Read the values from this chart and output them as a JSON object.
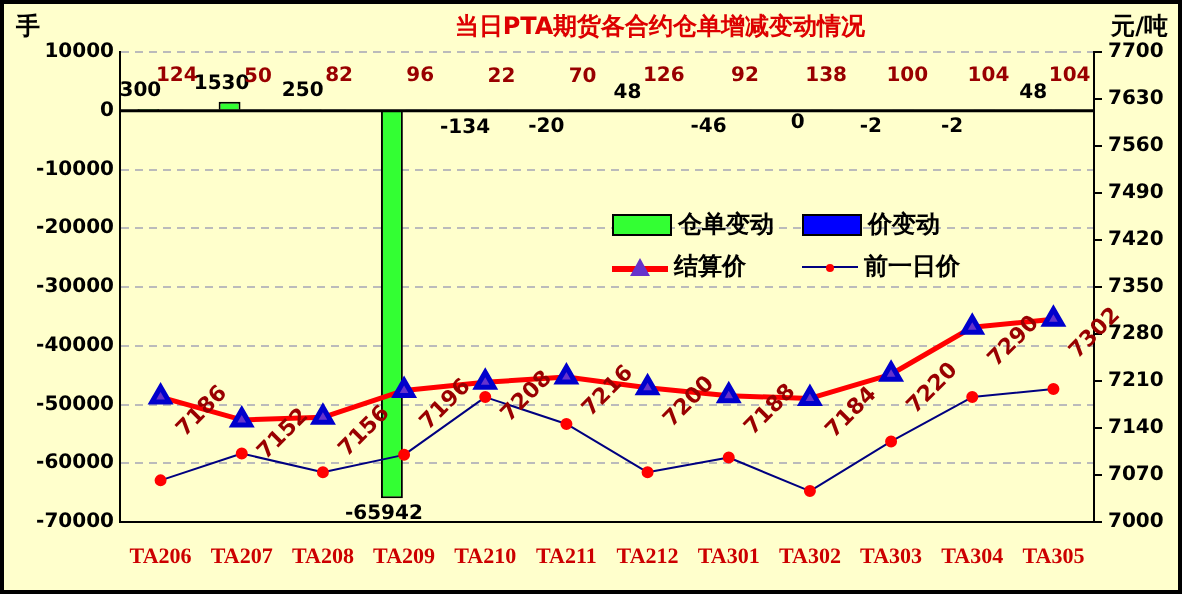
{
  "chart_data": {
    "type": "bar",
    "title": "当日PTA期货各合约仓单增减变动情况",
    "ylabel": "手",
    "y2label": "元/吨",
    "categories": [
      "TA206",
      "TA207",
      "TA208",
      "TA209",
      "TA210",
      "TA211",
      "TA212",
      "TA301",
      "TA302",
      "TA303",
      "TA304",
      "TA305"
    ],
    "series": [
      {
        "name": "仓单变动",
        "color": "#33ff33",
        "data_labels": true,
        "values": [
          300,
          1530,
          250,
          -65942,
          -134,
          -20,
          48,
          -46,
          0,
          -2,
          -2,
          48
        ]
      },
      {
        "name": "价变动",
        "color": "#0000ff",
        "data_labels": true,
        "values": [
          124,
          50,
          82,
          96,
          22,
          70,
          126,
          92,
          138,
          100,
          104,
          104
        ]
      },
      {
        "name": "结算价",
        "type": "line",
        "axis": "y2",
        "color": "#ff0000",
        "marker": "triangle",
        "data_labels": true,
        "values": [
          7186,
          7152,
          7156,
          7196,
          7208,
          7216,
          7200,
          7188,
          7184,
          7220,
          7290,
          7302
        ]
      },
      {
        "name": "前一日价",
        "type": "line",
        "axis": "y2",
        "color": "#000080",
        "marker": "circle",
        "values": [
          7062,
          7102,
          7074,
          7100,
          7186,
          7146,
          7074,
          7096,
          7046,
          7120,
          7186,
          7198
        ]
      }
    ],
    "ylim": [
      -70000,
      10000
    ],
    "yticks": [
      -70000,
      -60000,
      -50000,
      -40000,
      -30000,
      -20000,
      -10000,
      0,
      10000
    ],
    "y2lim": [
      7000,
      7700
    ],
    "y2ticks": [
      7000,
      7070,
      7140,
      7210,
      7280,
      7350,
      7420,
      7490,
      7560,
      7630,
      7700
    ],
    "ref_lines": [
      {
        "axis": "y",
        "value": 0,
        "color": "#000000"
      }
    ],
    "grid": "y",
    "legend": "right"
  }
}
